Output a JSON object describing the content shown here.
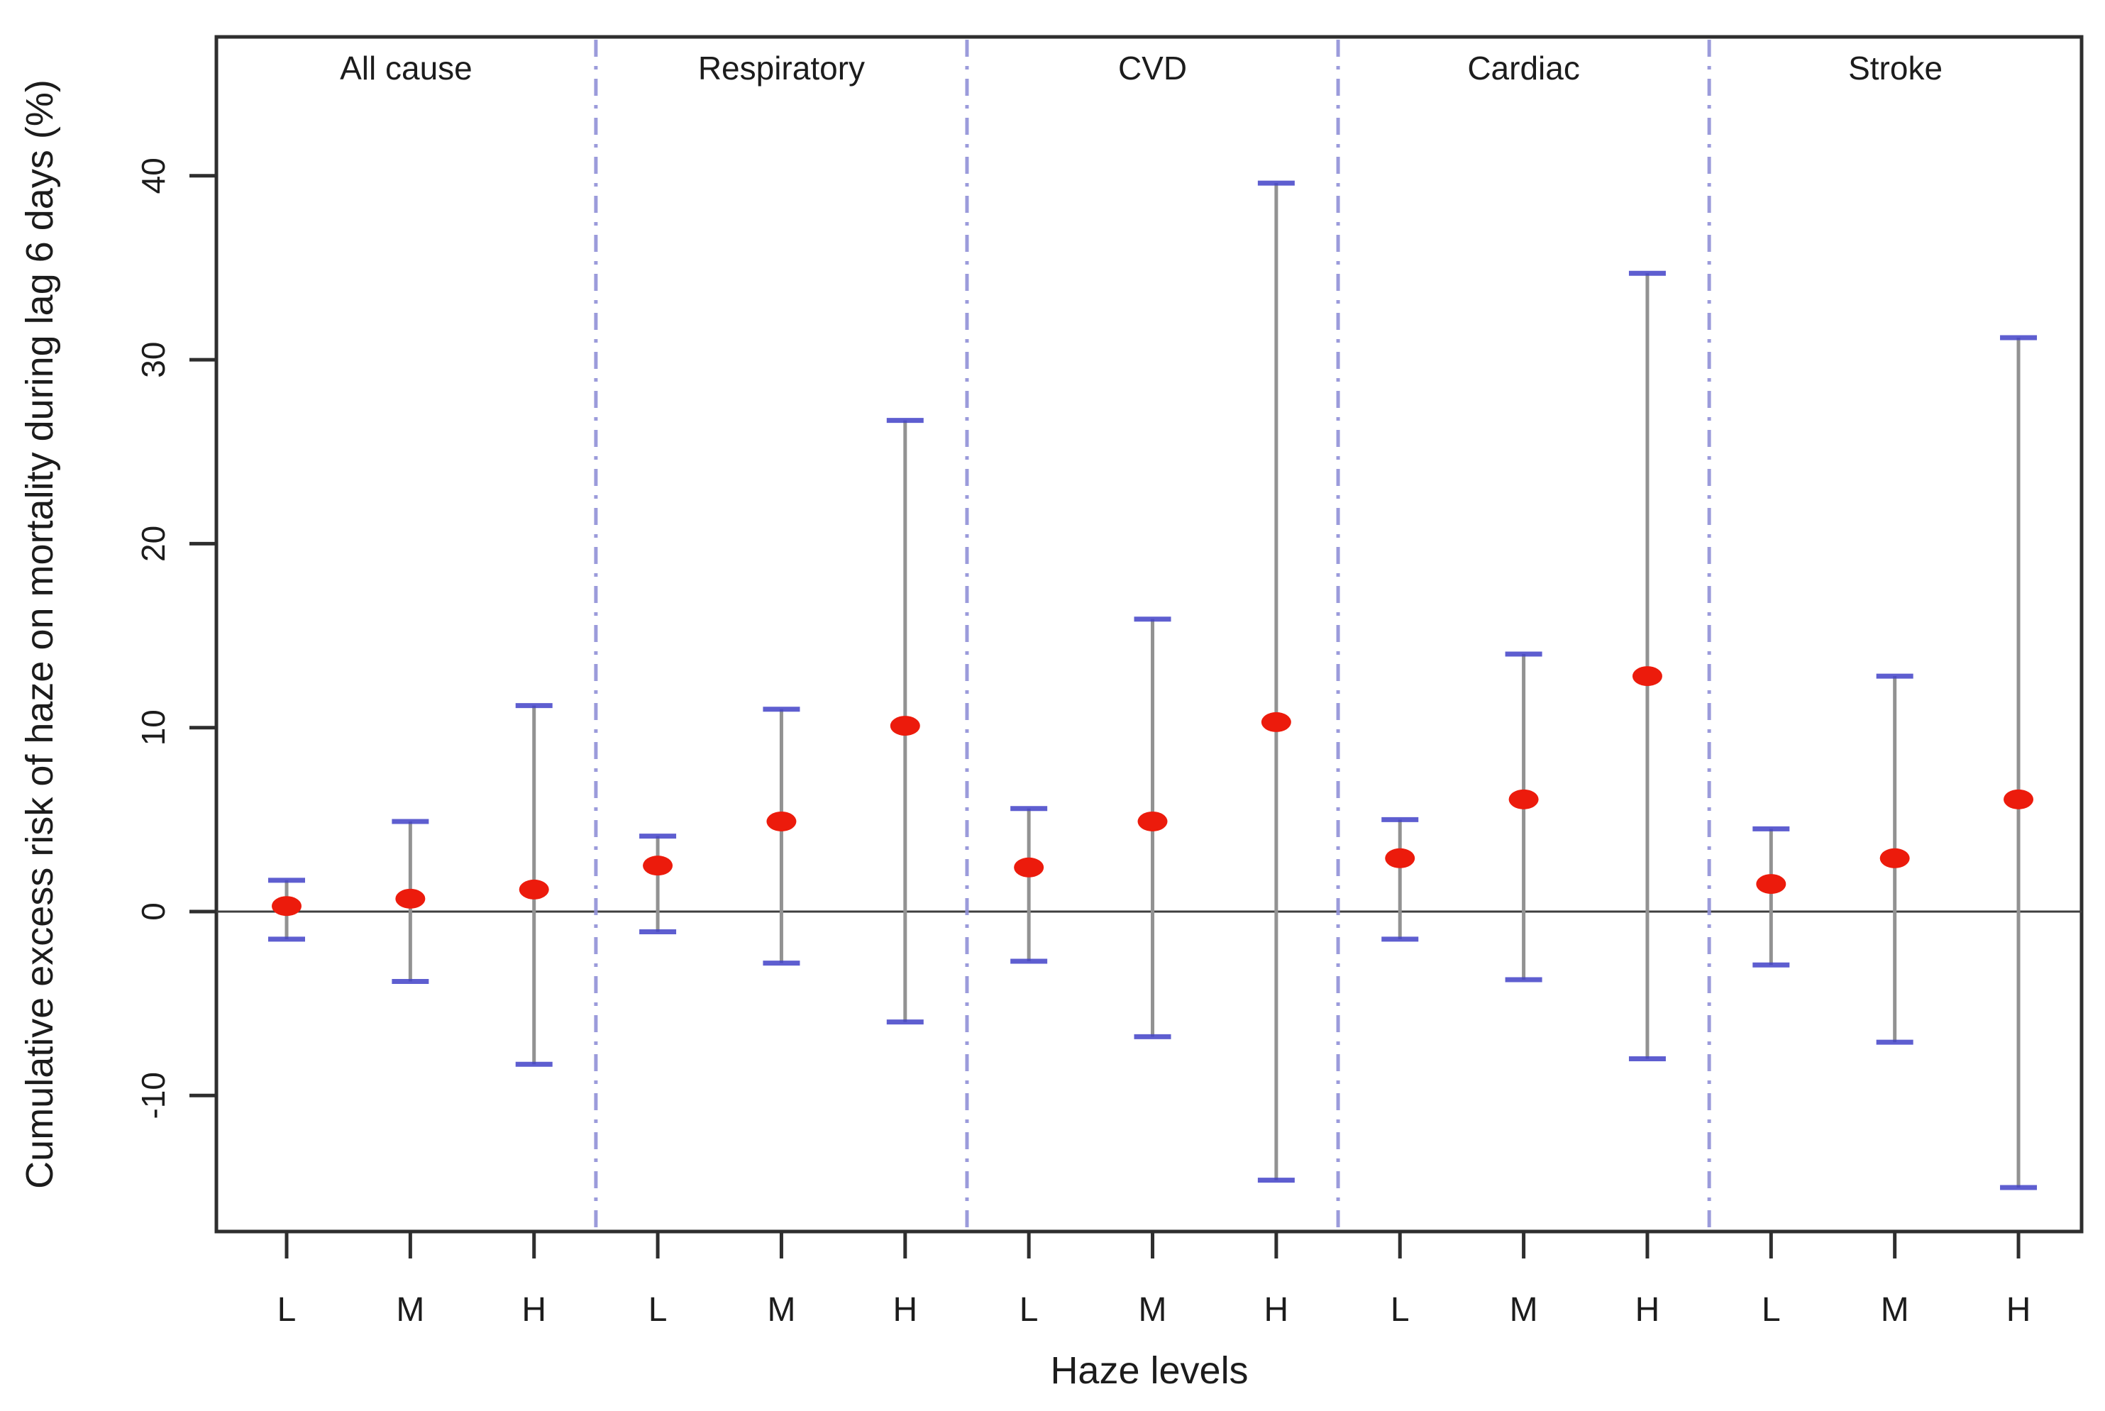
{
  "figure": {
    "background": "#ffffff"
  },
  "chart_data": {
    "type": "scatter",
    "subtype": "point-estimates-with-error-bars",
    "title": "",
    "xlabel": "Haze levels",
    "ylabel": "Cumulative excess risk of haze on mortality during lag 6 days (%)",
    "ylim": [
      -17.4,
      47.6
    ],
    "yticks": [
      {
        "value": -10,
        "label": "-10"
      },
      {
        "value": 0,
        "label": "0"
      },
      {
        "value": 10,
        "label": "10"
      },
      {
        "value": 20,
        "label": "20"
      },
      {
        "value": 30,
        "label": "30"
      },
      {
        "value": 40,
        "label": "40"
      }
    ],
    "grid": false,
    "zero_line": true,
    "legend": "none",
    "categories_per_group": [
      "L",
      "M",
      "H"
    ],
    "groups": [
      {
        "name": "All cause",
        "points": [
          {
            "level": "L",
            "value": 0.3,
            "ci_low": -1.5,
            "ci_high": 1.7
          },
          {
            "level": "M",
            "value": 0.7,
            "ci_low": -3.8,
            "ci_high": 4.9
          },
          {
            "level": "H",
            "value": 1.2,
            "ci_low": -8.3,
            "ci_high": 11.2
          }
        ]
      },
      {
        "name": "Respiratory",
        "points": [
          {
            "level": "L",
            "value": 2.5,
            "ci_low": -1.1,
            "ci_high": 4.1
          },
          {
            "level": "M",
            "value": 4.9,
            "ci_low": -2.8,
            "ci_high": 11.0
          },
          {
            "level": "H",
            "value": 10.1,
            "ci_low": -6.0,
            "ci_high": 26.7
          }
        ]
      },
      {
        "name": "CVD",
        "points": [
          {
            "level": "L",
            "value": 2.4,
            "ci_low": -2.7,
            "ci_high": 5.6
          },
          {
            "level": "M",
            "value": 4.9,
            "ci_low": -6.8,
            "ci_high": 15.9
          },
          {
            "level": "H",
            "value": 10.3,
            "ci_low": -14.6,
            "ci_high": 39.6
          }
        ]
      },
      {
        "name": "Cardiac",
        "points": [
          {
            "level": "L",
            "value": 2.9,
            "ci_low": -1.5,
            "ci_high": 5.0
          },
          {
            "level": "M",
            "value": 6.1,
            "ci_low": -3.7,
            "ci_high": 14.0
          },
          {
            "level": "H",
            "value": 12.8,
            "ci_low": -8.0,
            "ci_high": 34.7
          }
        ]
      },
      {
        "name": "Stroke",
        "points": [
          {
            "level": "L",
            "value": 1.5,
            "ci_low": -2.9,
            "ci_high": 4.5
          },
          {
            "level": "M",
            "value": 2.9,
            "ci_low": -7.1,
            "ci_high": 12.8
          },
          {
            "level": "H",
            "value": 6.1,
            "ci_low": -15.0,
            "ci_high": 31.2
          }
        ]
      }
    ],
    "colors": {
      "point": "#ec1b0c",
      "stem": "#929292",
      "cap": "#4343c8",
      "separator": "#9191d8",
      "axis": "#2e2e2e",
      "zero_line": "#3f3f3f",
      "text": "#1c1c1c",
      "background": "#ffffff"
    }
  }
}
